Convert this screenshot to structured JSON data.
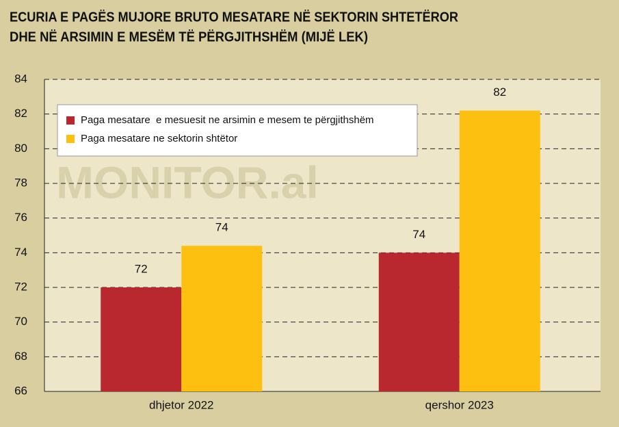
{
  "chart_data": {
    "type": "bar",
    "title": [
      "ECURIA E PAGËS MUJORE BRUTO MESATARE NË SEKTORIN SHTETËROR",
      "DHE NË ARSIMIN E MESËM TË PËRGJITHSHËM (MIJË LEK)"
    ],
    "watermark": "MONITOR.al",
    "categories": [
      "dhjetor 2022",
      "qershor 2023"
    ],
    "series": [
      {
        "name": "Paga mesatare  e mesuesit ne arsimin e mesem te përgjithshëm",
        "color": "#b8282e",
        "values": [
          72,
          74
        ]
      },
      {
        "name": "Paga mesatare ne sektorin shtëtor",
        "color": "#fdc010",
        "values": [
          74.4,
          82.2
        ],
        "value_labels": [
          "74",
          "82"
        ]
      }
    ],
    "ylim": [
      66,
      84
    ],
    "yticks": [
      66,
      68,
      70,
      72,
      74,
      76,
      78,
      80,
      82,
      84
    ],
    "grid": true,
    "legend": "upper left"
  }
}
